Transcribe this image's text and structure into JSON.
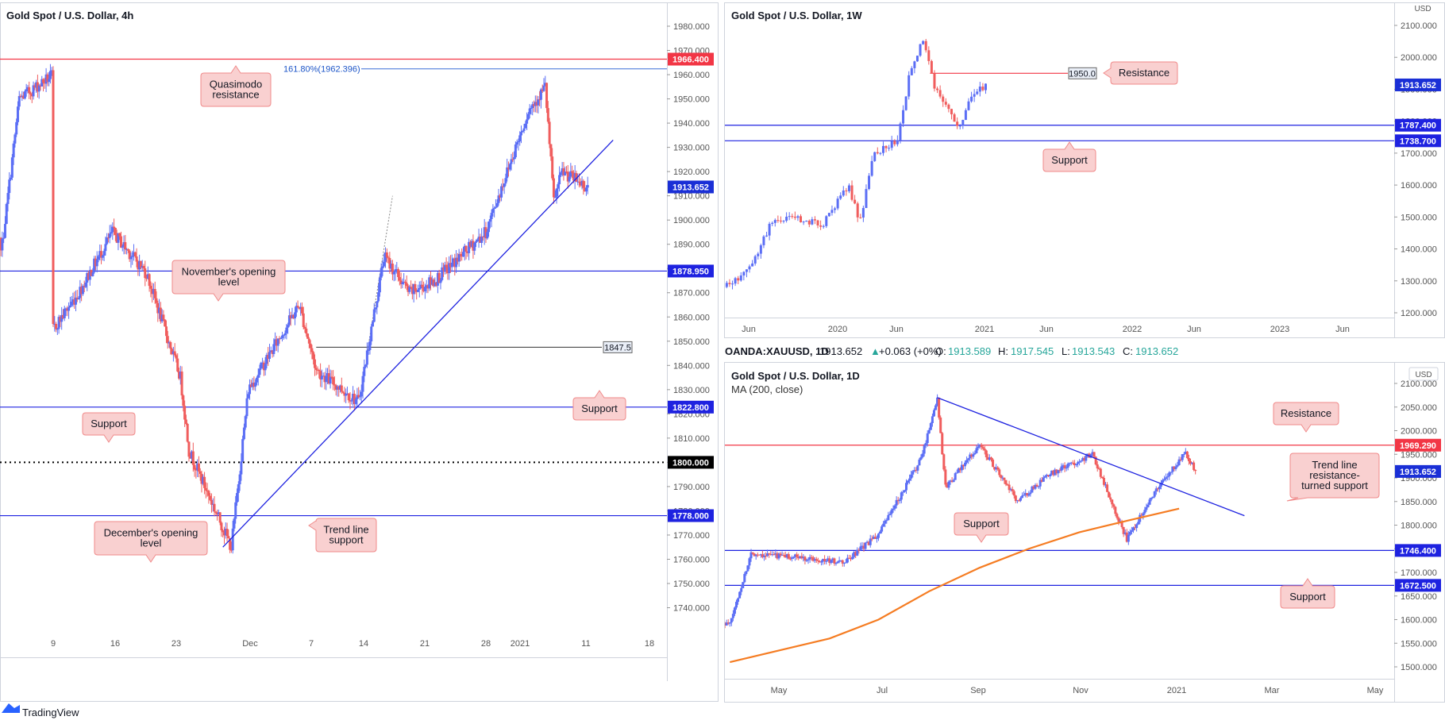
{
  "chart_data": [
    {
      "panel": "left",
      "type": "candlestick",
      "title": "Gold Spot / U.S. Dollar, 4h",
      "xlabels": [
        "9",
        "16",
        "23",
        "Dec",
        "7",
        "14",
        "21",
        "28",
        "2021",
        "11",
        "18"
      ],
      "ylim": [
        1740,
        1990
      ],
      "ytick_step": 10,
      "last_price": "1913.652",
      "fib_label": "161.80%(1962.396)",
      "levels": [
        {
          "value": 1966.4,
          "label": "1966.400",
          "color": "#f23645",
          "style": "solid"
        },
        {
          "value": 1878.95,
          "label": "1878.950",
          "color": "#1e22e0",
          "style": "solid"
        },
        {
          "value": 1822.8,
          "label": "1822.800",
          "color": "#1e22e0",
          "style": "solid"
        },
        {
          "value": 1800.0,
          "label": "1800.000",
          "color": "#000000",
          "style": "dotted"
        },
        {
          "value": 1778.0,
          "label": "1778.000",
          "color": "#1e22e0",
          "style": "solid"
        }
      ],
      "small_level": {
        "value": 1847.5,
        "label": "1847.5"
      },
      "trend_line": {
        "from": [
          "Nov 29",
          1765
        ],
        "to": [
          "Jan 14",
          1933
        ]
      },
      "annotations": [
        "Quasimodo resistance",
        "November's opening level",
        "Support",
        "Support",
        "December's opening level",
        "Trend line support"
      ],
      "series_path": [
        [
          "Nov 3",
          1890
        ],
        [
          "Nov 5",
          1950
        ],
        [
          "Nov 9",
          1960
        ],
        [
          "Nov 9",
          1855
        ],
        [
          "Nov 12",
          1870
        ],
        [
          "Nov 16",
          1895
        ],
        [
          "Nov 20",
          1878
        ],
        [
          "Nov 24",
          1835
        ],
        [
          "Nov 25",
          1805
        ],
        [
          "Nov 30",
          1765
        ],
        [
          "Dec 2",
          1830
        ],
        [
          "Dec 8",
          1865
        ],
        [
          "Dec 10",
          1838
        ],
        [
          "Dec 15",
          1825
        ],
        [
          "Dec 18",
          1885
        ],
        [
          "Dec 21",
          1870
        ],
        [
          "Dec 24",
          1875
        ],
        [
          "Dec 30",
          1895
        ],
        [
          "Jan 4",
          1945
        ],
        [
          "Jan 6",
          1955
        ],
        [
          "Jan 7",
          1908
        ],
        [
          "Jan 8",
          1920
        ],
        [
          "Jan 11",
          1913.652
        ]
      ]
    },
    {
      "panel": "top-right",
      "type": "candlestick",
      "title": "Gold Spot / U.S. Dollar, 1W",
      "currency": "USD",
      "xlabels": [
        "Jun",
        "2020",
        "Jun",
        "2021",
        "Jun",
        "2022",
        "Jun",
        "2023",
        "Jun"
      ],
      "ylim": [
        1170,
        2150
      ],
      "ytick_step": 100,
      "last_price": "1913.652",
      "levels": [
        {
          "value": 1950.0,
          "label": "1950.0",
          "color": "#f23645",
          "style": "solid"
        },
        {
          "value": 1787.4,
          "label": "1787.400",
          "color": "#1e22e0",
          "style": "solid"
        },
        {
          "value": 1738.7,
          "label": "1738.700",
          "color": "#1e22e0",
          "style": "solid"
        }
      ],
      "annotations": [
        "Resistance",
        "Support"
      ],
      "series_path": [
        [
          "2019-04",
          1280
        ],
        [
          "2019-06",
          1330
        ],
        [
          "2019-08",
          1500
        ],
        [
          "2019-10",
          1490
        ],
        [
          "2019-12",
          1480
        ],
        [
          "2020-02",
          1600
        ],
        [
          "2020-03",
          1480
        ],
        [
          "2020-04",
          1700
        ],
        [
          "2020-06",
          1740
        ],
        [
          "2020-07",
          1950
        ],
        [
          "2020-08",
          2060
        ],
        [
          "2020-09",
          1900
        ],
        [
          "2020-11",
          1780
        ],
        [
          "2020-12",
          1880
        ],
        [
          "2021-01",
          1913.652
        ]
      ]
    },
    {
      "panel": "bottom-right",
      "type": "candlestick",
      "title": "Gold Spot / U.S. Dollar, 1D",
      "subtitle": "MA (200, close)",
      "currency": "USD",
      "quote": {
        "symbol": "OANDA:XAUUSD, 1D",
        "last": "1913.652",
        "change": "+0.063 (+0%)",
        "O": "1913.589",
        "H": "1917.545",
        "L": "1913.543",
        "C": "1913.652"
      },
      "xlabels": [
        "May",
        "Jul",
        "Sep",
        "Nov",
        "2021",
        "Mar",
        "May"
      ],
      "ylim": [
        1460,
        2130
      ],
      "ytick_step": 50,
      "last_price": "1913.652",
      "levels": [
        {
          "value": 1969.29,
          "label": "1969.290",
          "color": "#f23645",
          "style": "solid"
        },
        {
          "value": 1746.4,
          "label": "1746.400",
          "color": "#1e22e0",
          "style": "solid"
        },
        {
          "value": 1672.5,
          "label": "1672.500",
          "color": "#1e22e0",
          "style": "solid"
        }
      ],
      "trend_line": {
        "from": [
          "2020-08-06",
          2070
        ],
        "to": [
          "2021-02-10",
          1820
        ]
      },
      "ma200": [
        [
          "2020-04",
          1510
        ],
        [
          "2020-06",
          1560
        ],
        [
          "2020-07",
          1600
        ],
        [
          "2020-08",
          1660
        ],
        [
          "2020-09",
          1710
        ],
        [
          "2020-10",
          1750
        ],
        [
          "2020-11",
          1785
        ],
        [
          "2020-12",
          1810
        ],
        [
          "2021-01",
          1835
        ]
      ],
      "annotations": [
        "Resistance",
        "Trend line resistance-turned support",
        "Support",
        "Support"
      ],
      "series_path": [
        [
          "2020-04-01",
          1590
        ],
        [
          "2020-04-14",
          1740
        ],
        [
          "2020-05-20",
          1730
        ],
        [
          "2020-06-10",
          1720
        ],
        [
          "2020-07-01",
          1780
        ],
        [
          "2020-07-27",
          1940
        ],
        [
          "2020-08-06",
          2070
        ],
        [
          "2020-08-11",
          1880
        ],
        [
          "2020-09-01",
          1970
        ],
        [
          "2020-09-24",
          1850
        ],
        [
          "2020-10-15",
          1910
        ],
        [
          "2020-11-09",
          1950
        ],
        [
          "2020-11-30",
          1770
        ],
        [
          "2020-12-15",
          1860
        ],
        [
          "2021-01-05",
          1955
        ],
        [
          "2021-01-11",
          1913.652
        ]
      ]
    }
  ],
  "brand": {
    "name": "TradingView",
    "icon": "tradingview-logo-icon"
  },
  "colors": {
    "up": "#5b6ef5",
    "down": "#f05d5d",
    "resistance": "#f23645",
    "support": "#1e22e0",
    "ma": "#f57c22",
    "callout_bg": "#f9d0d0",
    "callout_border": "#f08a8a"
  }
}
